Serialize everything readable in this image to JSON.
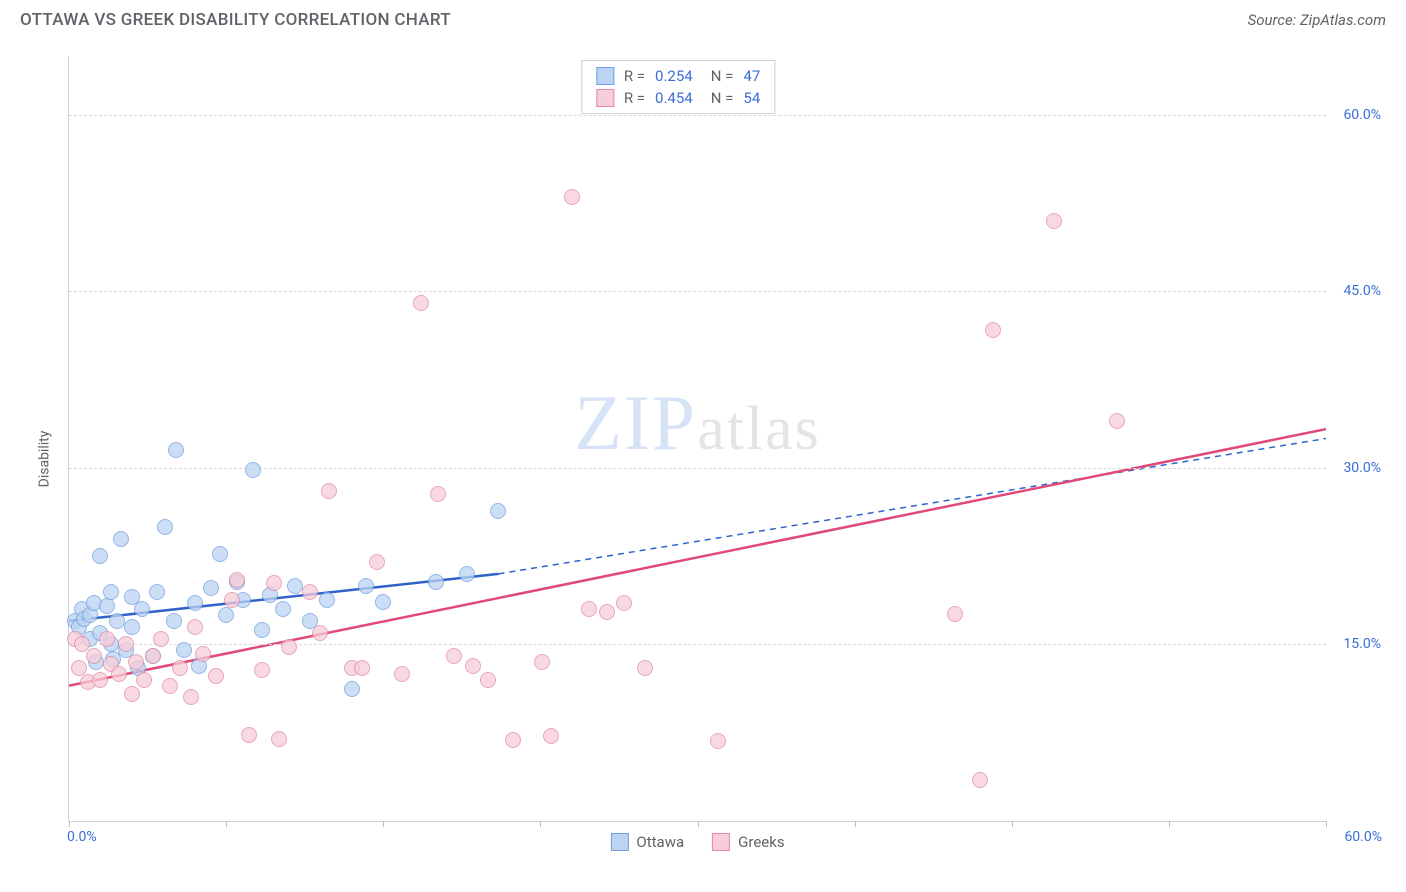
{
  "title": "OTTAWA VS GREEK DISABILITY CORRELATION CHART",
  "source": "Source: ZipAtlas.com",
  "ylabel": "Disability",
  "watermark_main": "ZIP",
  "watermark_sub": "atlas",
  "chart": {
    "type": "scatter",
    "xlim": [
      0,
      60
    ],
    "ylim": [
      0,
      65
    ],
    "x_tick_min_label": "0.0%",
    "x_tick_max_label": "60.0%",
    "x_tick_positions": [
      0,
      7.5,
      15,
      22.5,
      30,
      37.5,
      45,
      52.5,
      60
    ],
    "y_ticks": [
      {
        "v": 15,
        "label": "15.0%"
      },
      {
        "v": 30,
        "label": "30.0%"
      },
      {
        "v": 45,
        "label": "45.0%"
      },
      {
        "v": 60,
        "label": "60.0%"
      }
    ],
    "grid_color": "#d8d8d8",
    "background_color": "#ffffff",
    "point_radius": 8,
    "series": [
      {
        "name": "Ottawa",
        "fill": "#bcd4f2",
        "stroke": "#6e9fe0",
        "R": "0.254",
        "N": "47",
        "trend": {
          "x1": 0,
          "y1": 17,
          "x2_solid": 20.5,
          "y2_solid": 21.0,
          "x2": 60,
          "y2": 32.5,
          "color": "#2f63c9",
          "width": 2.5
        },
        "points": [
          [
            0.3,
            17
          ],
          [
            0.5,
            16.5
          ],
          [
            0.6,
            18
          ],
          [
            0.7,
            17.2
          ],
          [
            1.0,
            17.5
          ],
          [
            1.0,
            15.5
          ],
          [
            1.2,
            18.5
          ],
          [
            1.3,
            13.5
          ],
          [
            1.5,
            22.5
          ],
          [
            1.5,
            16
          ],
          [
            1.8,
            18.3
          ],
          [
            2.0,
            19.5
          ],
          [
            2.0,
            15
          ],
          [
            2.1,
            13.8
          ],
          [
            2.3,
            17
          ],
          [
            2.5,
            24
          ],
          [
            2.7,
            14.5
          ],
          [
            3.0,
            19
          ],
          [
            3.0,
            16.5
          ],
          [
            3.3,
            13
          ],
          [
            3.5,
            18
          ],
          [
            4.0,
            14
          ],
          [
            4.2,
            19.5
          ],
          [
            4.6,
            25
          ],
          [
            5.0,
            17
          ],
          [
            5.1,
            31.5
          ],
          [
            5.5,
            14.5
          ],
          [
            6.0,
            18.5
          ],
          [
            6.2,
            13.2
          ],
          [
            6.8,
            19.8
          ],
          [
            7.2,
            22.7
          ],
          [
            7.5,
            17.5
          ],
          [
            8.0,
            20.3
          ],
          [
            8.3,
            18.8
          ],
          [
            8.8,
            29.8
          ],
          [
            9.2,
            16.2
          ],
          [
            9.6,
            19.2
          ],
          [
            10.2,
            18.0
          ],
          [
            10.8,
            20.0
          ],
          [
            11.5,
            17.0
          ],
          [
            12.3,
            18.8
          ],
          [
            13.5,
            11.2
          ],
          [
            14.2,
            20.0
          ],
          [
            15.0,
            18.6
          ],
          [
            17.5,
            20.3
          ],
          [
            19.0,
            21.0
          ],
          [
            20.5,
            26.3
          ]
        ]
      },
      {
        "name": "Greeks",
        "fill": "#f6cdd8",
        "stroke": "#e28aa2",
        "R": "0.454",
        "N": "54",
        "trend": {
          "x1": 0,
          "y1": 11.5,
          "x2_solid": 60,
          "y2_solid": 33.3,
          "x2": 60,
          "y2": 33.3,
          "color": "#e14a76",
          "width": 2.5
        },
        "points": [
          [
            0.3,
            15.5
          ],
          [
            0.5,
            13
          ],
          [
            0.6,
            15
          ],
          [
            0.9,
            11.8
          ],
          [
            1.2,
            14
          ],
          [
            1.5,
            12
          ],
          [
            1.8,
            15.5
          ],
          [
            2.0,
            13.3
          ],
          [
            2.4,
            12.5
          ],
          [
            2.7,
            15
          ],
          [
            3.0,
            10.8
          ],
          [
            3.2,
            13.5
          ],
          [
            3.6,
            12.0
          ],
          [
            4.0,
            14.0
          ],
          [
            4.4,
            15.5
          ],
          [
            4.8,
            11.5
          ],
          [
            5.3,
            13.0
          ],
          [
            5.8,
            10.5
          ],
          [
            6.4,
            14.2
          ],
          [
            7.0,
            12.3
          ],
          [
            7.8,
            18.8
          ],
          [
            8.6,
            7.3
          ],
          [
            9.2,
            12.8
          ],
          [
            10.0,
            7.0
          ],
          [
            10.5,
            14.8
          ],
          [
            11.5,
            19.5
          ],
          [
            12.4,
            28.0
          ],
          [
            13.5,
            13.0
          ],
          [
            14.7,
            22.0
          ],
          [
            15.9,
            12.5
          ],
          [
            16.8,
            44.0
          ],
          [
            17.6,
            27.8
          ],
          [
            18.4,
            14.0
          ],
          [
            19.3,
            13.2
          ],
          [
            21.2,
            6.9
          ],
          [
            22.6,
            13.5
          ],
          [
            23.0,
            7.2
          ],
          [
            24.0,
            53.0
          ],
          [
            24.8,
            18.0
          ],
          [
            25.7,
            17.8
          ],
          [
            20.0,
            12.0
          ],
          [
            31.0,
            6.8
          ],
          [
            42.3,
            17.6
          ],
          [
            44.1,
            41.7
          ],
          [
            43.5,
            3.5
          ],
          [
            47.0,
            51.0
          ],
          [
            50.0,
            34.0
          ],
          [
            26.5,
            18.5
          ],
          [
            27.5,
            13.0
          ],
          [
            14.0,
            13.0
          ],
          [
            8.0,
            20.5
          ],
          [
            9.8,
            20.2
          ],
          [
            12.0,
            16.0
          ],
          [
            6.0,
            16.5
          ]
        ]
      }
    ]
  },
  "legend_bottom": [
    {
      "label": "Ottawa",
      "fill": "#bcd4f2",
      "stroke": "#6e9fe0"
    },
    {
      "label": "Greeks",
      "fill": "#f6cdd8",
      "stroke": "#e28aa2"
    }
  ]
}
